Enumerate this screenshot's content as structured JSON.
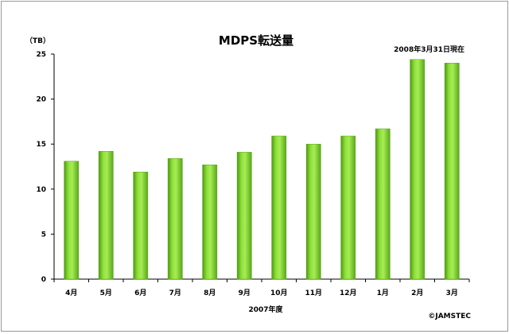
{
  "chart_data": {
    "type": "bar",
    "title": "MDPS転送量",
    "unit_label": "（TB）",
    "date_note": "2008年3月31日現在",
    "xlabel": "2007年度",
    "copyright": "©JAMSTEC",
    "categories": [
      "4月",
      "5月",
      "6月",
      "7月",
      "8月",
      "9月",
      "10月",
      "11月",
      "12月",
      "1月",
      "2月",
      "3月"
    ],
    "values": [
      13.1,
      14.2,
      11.9,
      13.4,
      12.7,
      14.1,
      15.9,
      15.0,
      15.9,
      16.7,
      24.4,
      24.0
    ],
    "ylim": [
      0,
      25
    ],
    "yticks": [
      0,
      5,
      10,
      15,
      20,
      25
    ],
    "grid": false,
    "legend": "none",
    "bar_color": "#7fd12a"
  }
}
